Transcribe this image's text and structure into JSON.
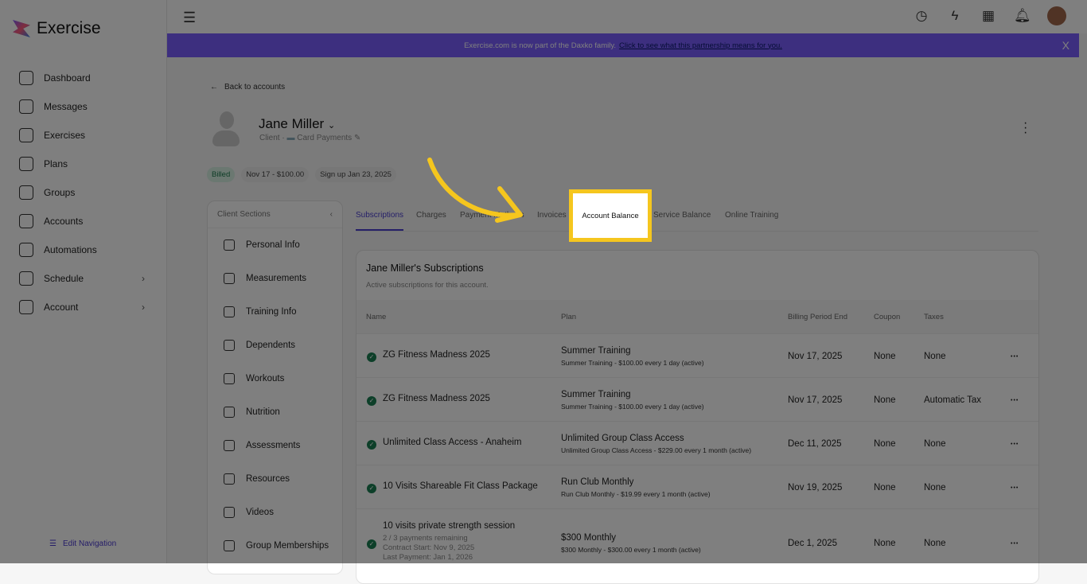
{
  "app": {
    "name": "Exercise"
  },
  "sidebar": {
    "items": [
      {
        "label": "Dashboard",
        "icon": "home-icon"
      },
      {
        "label": "Messages",
        "icon": "mail-icon"
      },
      {
        "label": "Exercises",
        "icon": "dumbbell-icon"
      },
      {
        "label": "Plans",
        "icon": "clipboard-icon"
      },
      {
        "label": "Groups",
        "icon": "users-icon"
      },
      {
        "label": "Accounts",
        "icon": "user-icon"
      },
      {
        "label": "Automations",
        "icon": "robot-icon"
      },
      {
        "label": "Schedule",
        "icon": "calendar-icon",
        "chevron": "›"
      },
      {
        "label": "Account",
        "icon": "user-gear-icon",
        "chevron": "›"
      }
    ],
    "edit_nav": "Edit Navigation"
  },
  "topbar": {
    "icons": [
      "clock-icon",
      "bolt-icon",
      "apps-grid-icon",
      "bell-icon"
    ]
  },
  "banner": {
    "text": "Exercise.com is now part of the Daxko family.",
    "link": "Click to see what this partnership means for you.",
    "close": "X",
    "color": "#7a5eff"
  },
  "back_label": "Back to accounts",
  "client": {
    "name": "Jane Miller",
    "role": "Client",
    "payment": "Card Payments",
    "badges": [
      "Billed",
      "Nov 17 - $100.00",
      "Sign up Jan 23, 2025"
    ]
  },
  "client_sections": {
    "title": "Client Sections",
    "items": [
      "Personal Info",
      "Measurements",
      "Training Info",
      "Dependents",
      "Workouts",
      "Nutrition",
      "Assessments",
      "Resources",
      "Videos",
      "Group Memberships"
    ]
  },
  "tabs": [
    "Subscriptions",
    "Charges",
    "Payment Methods",
    "Invoices",
    "Account Balance",
    "Service Balance",
    "Online Training"
  ],
  "highlighted_tab": "Account Balance",
  "subscriptions": {
    "title": "Jane Miller's Subscriptions",
    "subtitle": "Active subscriptions for this account.",
    "columns": [
      "Name",
      "Plan",
      "Billing Period End",
      "Coupon",
      "Taxes"
    ],
    "rows": [
      {
        "name": "ZG Fitness Madness 2025",
        "plan": "Summer Training",
        "plan_detail": "Summer Training - $100.00 every 1 day (active)",
        "end": "Nov 17, 2025",
        "coupon": "None",
        "taxes": "None"
      },
      {
        "name": "ZG Fitness Madness 2025",
        "plan": "Summer Training",
        "plan_detail": "Summer Training - $100.00 every 1 day (active)",
        "end": "Nov 17, 2025",
        "coupon": "None",
        "taxes": "Automatic Tax"
      },
      {
        "name": "Unlimited Class Access - Anaheim",
        "plan": "Unlimited Group Class Access",
        "plan_detail": "Unlimited Group Class Access - $229.00 every 1 month (active)",
        "end": "Dec 11, 2025",
        "coupon": "None",
        "taxes": "None"
      },
      {
        "name": "10 Visits Shareable Fit Class Package",
        "plan": "Run Club Monthly",
        "plan_detail": "Run Club Monthly - $19.99 every 1 month (active)",
        "end": "Nov 19, 2025",
        "coupon": "None",
        "taxes": "None"
      },
      {
        "name": "10 visits private strength session",
        "extra": [
          "2 / 3 payments remaining",
          "Contract Start: Nov 9, 2025",
          "Last Payment: Jan 1, 2026"
        ],
        "plan": "$300 Monthly",
        "plan_detail": "$300 Monthly - $300.00 every 1 month (active)",
        "end": "Dec 1, 2025",
        "coupon": "None",
        "taxes": "None"
      }
    ]
  },
  "annotation_color": "#f5c61e"
}
